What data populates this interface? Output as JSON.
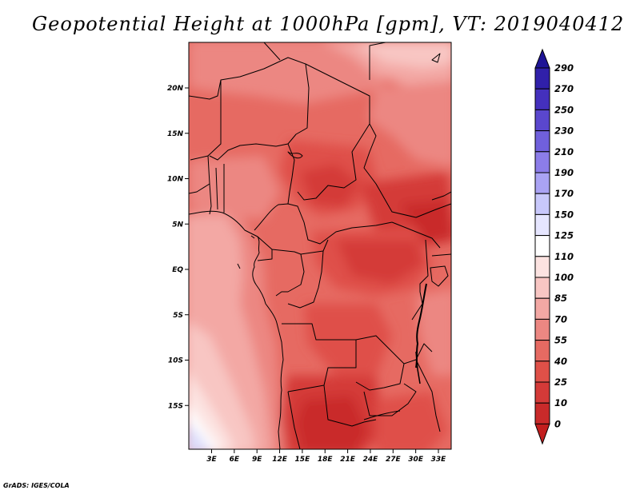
{
  "title": "Geopotential Height at 1000hPa [gpm], VT: 2019040412",
  "credit": "GrADS: IGES/COLA",
  "map": {
    "lat_labels": [
      "20N",
      "15N",
      "10N",
      "5N",
      "EQ",
      "5S",
      "10S",
      "15S"
    ],
    "lon_labels": [
      "3E",
      "6E",
      "9E",
      "12E",
      "15E",
      "18E",
      "21E",
      "24E",
      "27E",
      "30E",
      "33E"
    ]
  },
  "colorbar": {
    "labels": [
      "290",
      "270",
      "250",
      "230",
      "210",
      "190",
      "170",
      "150",
      "125",
      "110",
      "100",
      "85",
      "70",
      "55",
      "40",
      "25",
      "10",
      "0"
    ],
    "colors": {
      "below": "#c21e1e",
      "bins": [
        "#c92a2a",
        "#d43a38",
        "#df5048",
        "#e66a62",
        "#ec8782",
        "#f3a8a4",
        "#f8c6c3",
        "#fce3e1",
        "#ffffff",
        "#e6e6ff",
        "#c8c8fb",
        "#aaa3f4",
        "#8c7de9",
        "#7060dc",
        "#5a47ce",
        "#4430bd",
        "#3020aa"
      ],
      "above": "#1e1496"
    }
  },
  "chart_data": {
    "type": "heatmap",
    "title": "Geopotential Height at 1000hPa [gpm], VT: 2019040412",
    "variable": "Geopotential Height",
    "units": "gpm",
    "level": "1000hPa",
    "valid_time": "2019040412",
    "domain": {
      "lon": [
        0,
        35
      ],
      "lat": [
        -20,
        24
      ]
    },
    "contour_levels": [
      0,
      10,
      25,
      40,
      55,
      70,
      85,
      100,
      110,
      125,
      150,
      170,
      190,
      210,
      230,
      250,
      270,
      290
    ],
    "approximate_field_regions": [
      {
        "region": "Southwest coast (Atlantic, 0E-3E, 20S-17S)",
        "value_range": [
          110,
          125
        ]
      },
      {
        "region": "Atlantic offshore, Gulf of Guinea",
        "value_range": [
          70,
          100
        ]
      },
      {
        "region": "Central Africa / Congo Basin",
        "value_range": [
          25,
          40
        ]
      },
      {
        "region": "Chad / Sudan basin (~8N, 20E-30E)",
        "value_range": [
          10,
          25
        ]
      },
      {
        "region": "Kalahari / Angola-Zambia (~18S, 15E-22E)",
        "value_range": [
          10,
          25
        ]
      },
      {
        "region": "Sahara north (~20N)",
        "value_range": [
          55,
          85
        ]
      }
    ]
  }
}
